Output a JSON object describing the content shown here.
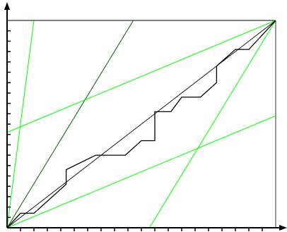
{
  "chart_data": {
    "type": "line",
    "title": "",
    "xlabel": "",
    "ylabel": "",
    "xlim": [
      0,
      1
    ],
    "ylim": [
      0,
      1
    ],
    "grid": false,
    "axis_ticks": {
      "x": [
        0.05,
        0.1,
        0.15,
        0.2,
        0.25,
        0.3,
        0.35,
        0.4,
        0.45,
        0.5,
        0.55,
        0.6,
        0.65,
        0.7,
        0.75,
        0.8,
        0.85,
        0.9,
        0.95
      ],
      "y": [
        0.05,
        0.1,
        0.15,
        0.2,
        0.25,
        0.3,
        0.35,
        0.4,
        0.45,
        0.5,
        0.55,
        0.6,
        0.65,
        0.7,
        0.75,
        0.8,
        0.85,
        0.9,
        0.95
      ]
    },
    "colors": {
      "axes": "#000000",
      "frame": "#000000",
      "band": "#00ff00",
      "steep_line": "#006400",
      "step_curve": "#000000",
      "diagonal": "#000000"
    },
    "series": [
      {
        "role": "diagonal",
        "x": [
          0,
          1
        ],
        "y": [
          0,
          1
        ]
      },
      {
        "role": "steep_line",
        "x": [
          0,
          0.47
        ],
        "y": [
          0,
          1
        ]
      },
      {
        "role": "band",
        "x": [
          0,
          1
        ],
        "y": [
          0.46,
          1
        ]
      },
      {
        "role": "band",
        "x": [
          0,
          1
        ],
        "y": [
          0,
          0.54
        ]
      },
      {
        "role": "band",
        "x": [
          0.53,
          1
        ],
        "y": [
          0,
          1
        ]
      },
      {
        "role": "band",
        "x": [
          0,
          0.1
        ],
        "y": [
          0,
          1
        ]
      },
      {
        "role": "step_curve",
        "x": [
          0,
          0.05,
          0.1,
          0.22,
          0.22,
          0.33,
          0.44,
          0.5,
          0.55,
          0.55,
          0.61,
          0.65,
          0.72,
          0.78,
          0.78,
          0.85,
          0.9,
          1
        ],
        "y": [
          0,
          0.07,
          0.07,
          0.21,
          0.28,
          0.35,
          0.35,
          0.42,
          0.42,
          0.56,
          0.56,
          0.63,
          0.63,
          0.7,
          0.78,
          0.86,
          0.86,
          1
        ]
      }
    ]
  }
}
